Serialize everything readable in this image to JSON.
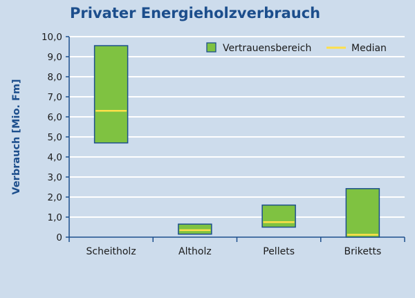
{
  "chart_data": {
    "type": "bar",
    "title": "Privater Energieholzverbrauch",
    "ylabel": "Verbrauch [Mio. Fm]",
    "xlabel": "",
    "ylim": [
      0,
      10
    ],
    "yticks": [
      "0",
      "1,0",
      "2,0",
      "3,0",
      "4,0",
      "5,0",
      "6,0",
      "7,0",
      "8,0",
      "9,0",
      "10,0"
    ],
    "categories": [
      "Scheitholz",
      "Altholz",
      "Pellets",
      "Briketts"
    ],
    "ranges": [
      {
        "low": 4.7,
        "high": 9.55,
        "median": 6.3
      },
      {
        "low": 0.15,
        "high": 0.65,
        "median": 0.35
      },
      {
        "low": 0.5,
        "high": 1.6,
        "median": 0.75
      },
      {
        "low": 0.0,
        "high": 2.42,
        "median": 0.12
      }
    ],
    "legend": {
      "position": "top-right",
      "entries": [
        "Vertrauensbereich",
        "Median"
      ]
    },
    "colors": {
      "background": "#cddcec",
      "box_fill": "#7fc241",
      "box_stroke": "#1c4e8c",
      "median": "#ffe04a",
      "grid": "#ffffff",
      "axis": "#1c4e8c",
      "title": "#1c4e8c"
    },
    "grid": true
  }
}
